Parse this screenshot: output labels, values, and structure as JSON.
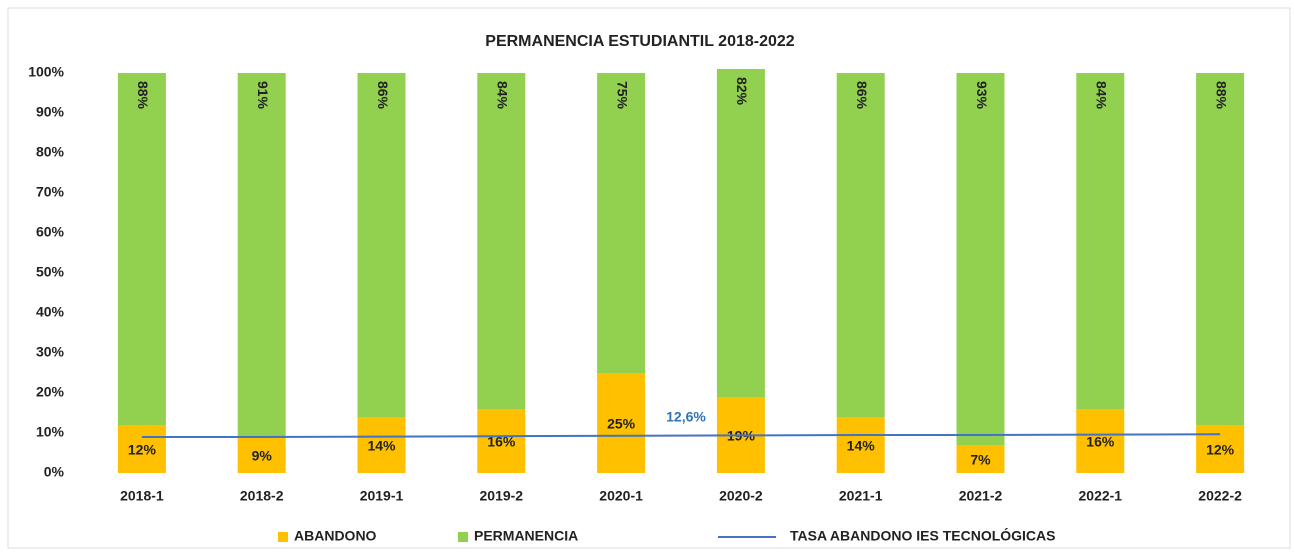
{
  "chart_data": {
    "type": "bar",
    "stacked": true,
    "title": "PERMANENCIA ESTUDIANTIL 2018-2022",
    "categories": [
      "2018-1",
      "2018-2",
      "2019-1",
      "2019-2",
      "2020-1",
      "2020-2",
      "2021-1",
      "2021-2",
      "2022-1",
      "2022-2"
    ],
    "series": [
      {
        "name": "ABANDONO",
        "color": "#ffc000",
        "values": [
          12,
          9,
          14,
          16,
          25,
          19,
          14,
          7,
          16,
          12
        ],
        "value_labels": [
          "12%",
          "9%",
          "14%",
          "16%",
          "25%",
          "19%",
          "14%",
          "7%",
          "16%",
          "12%"
        ]
      },
      {
        "name": "PERMANENCIA",
        "color": "#92d050",
        "values": [
          88,
          91,
          86,
          84,
          75,
          82,
          86,
          93,
          84,
          88
        ],
        "value_labels": [
          "88%",
          "91%",
          "86%",
          "84%",
          "75%",
          "82%",
          "86%",
          "93%",
          "84%",
          "88%"
        ]
      },
      {
        "name": "TASA ABANDONO IES TECNOLÓGICAS",
        "type": "line",
        "color": "#4472c4",
        "values": [
          9,
          9,
          9.1,
          9.2,
          9.3,
          9.4,
          9.5,
          9.5,
          9.6,
          9.7
        ]
      }
    ],
    "annotation": "12,6%",
    "ylim": [
      0,
      100
    ],
    "yticks": [
      {
        "value": 0,
        "label": "0%"
      },
      {
        "value": 10,
        "label": "10%"
      },
      {
        "value": 20,
        "label": "20%"
      },
      {
        "value": 30,
        "label": "30%"
      },
      {
        "value": 40,
        "label": "40%"
      },
      {
        "value": 50,
        "label": "50%"
      },
      {
        "value": 60,
        "label": "60%"
      },
      {
        "value": 70,
        "label": "70%"
      },
      {
        "value": 80,
        "label": "80%"
      },
      {
        "value": 90,
        "label": "90%"
      },
      {
        "value": 100,
        "label": "100%"
      }
    ],
    "grid": false,
    "legend": "bottom"
  }
}
